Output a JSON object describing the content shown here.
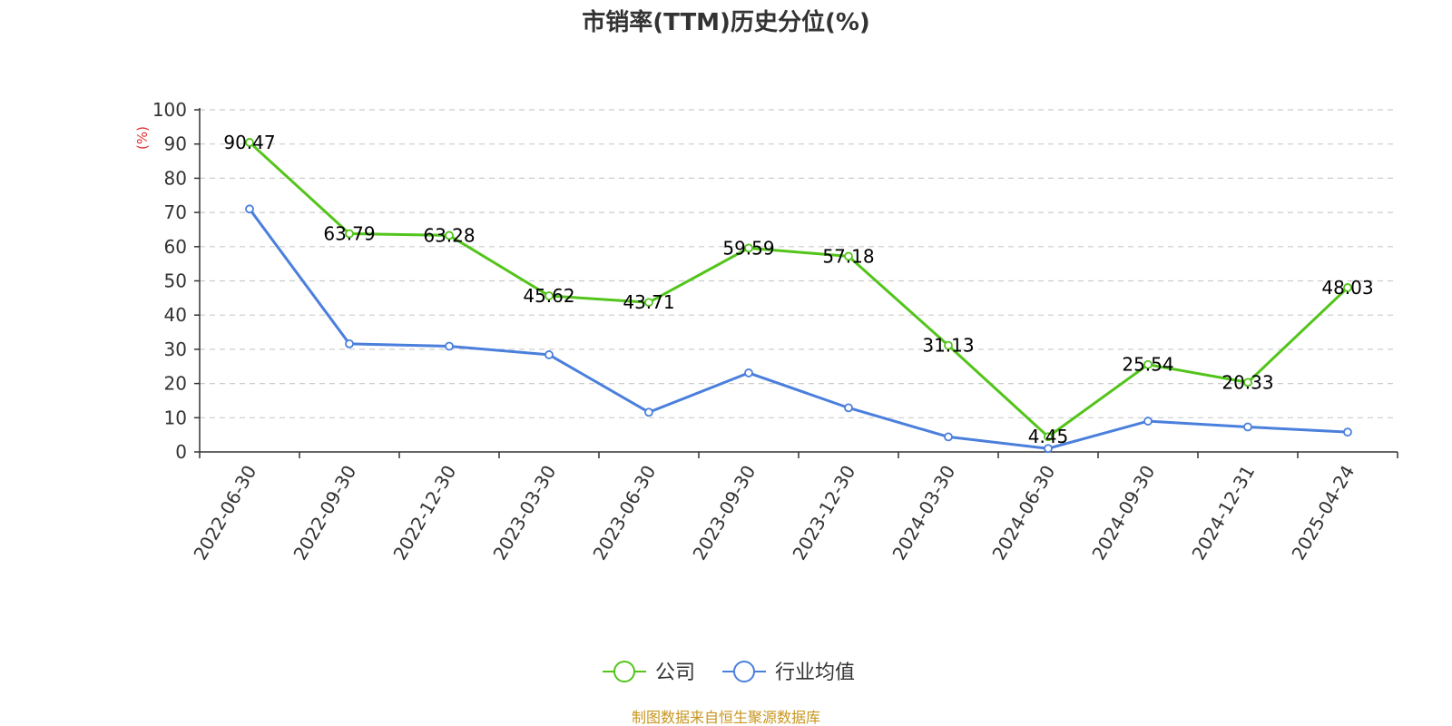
{
  "chart_data": {
    "type": "line",
    "title": "市销率(TTM)历史分位(%)",
    "ylabel": "(%)",
    "xlabel": "",
    "ylim": [
      0,
      100
    ],
    "yticks": [
      0,
      10,
      20,
      30,
      40,
      50,
      60,
      70,
      80,
      90,
      100
    ],
    "categories": [
      "2022-06-30",
      "2022-09-30",
      "2022-12-30",
      "2023-03-30",
      "2023-06-30",
      "2023-09-30",
      "2023-12-30",
      "2024-03-30",
      "2024-06-30",
      "2024-09-30",
      "2024-12-31",
      "2025-04-24"
    ],
    "series": [
      {
        "name": "公司",
        "color": "#52c41a",
        "show_labels": true,
        "values": [
          90.47,
          63.79,
          63.28,
          45.62,
          43.71,
          59.59,
          57.18,
          31.13,
          4.45,
          25.54,
          20.33,
          48.03
        ]
      },
      {
        "name": "行业均值",
        "color": "#4a7fdc",
        "show_labels": false,
        "values": [
          71.0,
          31.6,
          30.9,
          28.4,
          11.6,
          23.1,
          12.9,
          4.4,
          1.0,
          9.0,
          7.3,
          5.8
        ]
      }
    ],
    "grid": true,
    "legend_position": "bottom-center"
  },
  "footer": {
    "source": "制图数据来自恒生聚源数据库",
    "source_color": "#c8961e"
  },
  "colors": {
    "unit_label": "#e03030",
    "grid": "#cccccc",
    "axis": "#333333"
  }
}
